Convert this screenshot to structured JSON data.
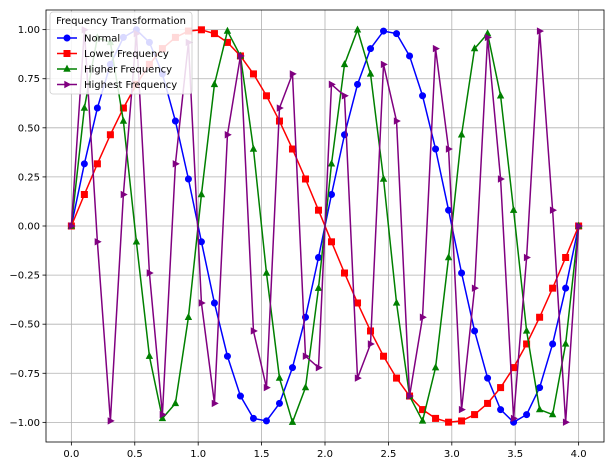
{
  "chart_data": {
    "type": "line",
    "title": "",
    "xlabel": "",
    "ylabel": "",
    "xlim": [
      -0.2,
      4.2
    ],
    "ylim": [
      -1.1,
      1.1
    ],
    "x_ticks": [
      0.0,
      0.5,
      1.0,
      1.5,
      2.0,
      2.5,
      3.0,
      3.5,
      4.0
    ],
    "x_tick_labels": [
      "0.0",
      "0.5",
      "1.0",
      "1.5",
      "2.0",
      "2.5",
      "3.0",
      "3.5",
      "4.0"
    ],
    "y_ticks": [
      -1.0,
      -0.75,
      -0.5,
      -0.25,
      0.0,
      0.25,
      0.5,
      0.75,
      1.0
    ],
    "y_tick_labels": [
      "−1.00",
      "−0.75",
      "−0.50",
      "−0.25",
      "0.00",
      "0.25",
      "0.50",
      "0.75",
      "1.00"
    ],
    "grid": true,
    "legend": {
      "title": "Frequency Transformation",
      "placement": "top-left"
    },
    "x_sampling": {
      "start": 0,
      "stop": 4,
      "count": 40
    },
    "series": [
      {
        "name": "Normal",
        "function": "sin(2*pi*0.5*x)",
        "color": "#0000ff",
        "marker": "circle"
      },
      {
        "name": "Lower Frequency",
        "function": "sin(2*pi*0.25*x)",
        "color": "#ff0000",
        "marker": "square"
      },
      {
        "name": "Higher Frequency",
        "function": "sin(2*pi*1.0*x)",
        "color": "#008000",
        "marker": "triangle-up"
      },
      {
        "name": "Highest Frequency",
        "function": "sin(2*pi*2.5*x)",
        "color": "#800080",
        "marker": "triangle-right"
      }
    ]
  }
}
